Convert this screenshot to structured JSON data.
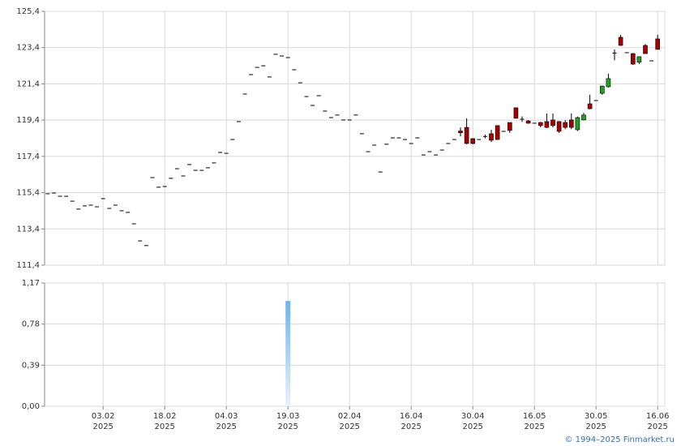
{
  "chart_data": {
    "type": "candlestick",
    "categories": [
      null,
      null,
      null,
      null,
      null,
      null,
      null,
      null,
      null,
      [
        "03.02",
        "2025"
      ],
      null,
      null,
      null,
      null,
      null,
      null,
      null,
      null,
      null,
      [
        "18.02",
        "2025"
      ],
      null,
      null,
      null,
      null,
      null,
      null,
      null,
      null,
      null,
      [
        "04.03",
        "2025"
      ],
      null,
      null,
      null,
      null,
      null,
      null,
      null,
      null,
      null,
      [
        "19.03",
        "2025"
      ],
      null,
      null,
      null,
      null,
      null,
      null,
      null,
      null,
      null,
      [
        "02.04",
        "2025"
      ],
      null,
      null,
      null,
      null,
      null,
      null,
      null,
      null,
      null,
      [
        "16.04",
        "2025"
      ],
      null,
      null,
      null,
      null,
      null,
      null,
      null,
      null,
      null,
      [
        "30.04",
        "2025"
      ],
      null,
      null,
      null,
      null,
      null,
      null,
      null,
      null,
      null,
      [
        "16.05",
        "2025"
      ],
      null,
      null,
      null,
      null,
      null,
      null,
      null,
      null,
      null,
      [
        "30.05",
        "2025"
      ],
      null,
      null,
      null,
      null,
      null,
      null,
      null,
      null,
      null,
      [
        "16.06",
        "2025"
      ]
    ],
    "open": [
      115.34,
      115.38,
      115.2,
      115.2,
      114.93,
      114.49,
      114.67,
      114.71,
      114.62,
      115.07,
      114.53,
      114.71,
      114.4,
      114.31,
      113.68,
      112.74,
      112.48,
      116.23,
      115.7,
      115.74,
      116.19,
      116.72,
      116.32,
      116.95,
      116.63,
      116.63,
      116.77,
      117.04,
      117.62,
      117.57,
      118.33,
      119.32,
      120.84,
      121.91,
      122.31,
      122.4,
      121.78,
      123.03,
      122.94,
      122.85,
      122.18,
      121.46,
      120.7,
      120.21,
      120.75,
      119.9,
      119.54,
      119.68,
      119.41,
      119.41,
      119.68,
      118.65,
      117.66,
      118.02,
      116.54,
      118.07,
      118.42,
      118.42,
      118.33,
      118.11,
      118.42,
      117.48,
      117.66,
      117.48,
      117.75,
      118.11,
      118.33,
      118.8,
      119.0,
      118.38,
      118.33,
      118.5,
      118.65,
      119.1,
      118.78,
      119.27,
      120.08,
      119.45,
      119.36,
      119.23,
      119.27,
      119.32,
      119.41,
      119.32,
      119.27,
      119.41,
      118.87,
      119.41,
      120.3,
      120.48,
      120.88,
      121.24,
      123.1,
      123.97,
      123.12,
      123.07,
      122.6,
      123.52,
      122.67,
      123.88
    ],
    "high": [
      115.34,
      115.38,
      115.2,
      115.2,
      114.93,
      114.49,
      114.67,
      114.71,
      114.62,
      115.07,
      114.53,
      114.71,
      114.4,
      114.31,
      113.68,
      112.74,
      112.48,
      116.23,
      115.7,
      115.74,
      116.19,
      116.72,
      116.32,
      116.95,
      116.63,
      116.63,
      116.77,
      117.04,
      117.62,
      117.57,
      118.33,
      119.32,
      120.84,
      121.91,
      122.31,
      122.4,
      121.78,
      123.03,
      122.94,
      122.85,
      122.18,
      121.46,
      120.7,
      120.21,
      120.75,
      119.9,
      119.54,
      119.68,
      119.41,
      119.41,
      119.68,
      118.65,
      117.66,
      118.02,
      116.54,
      118.07,
      118.42,
      118.42,
      118.33,
      118.11,
      118.42,
      117.48,
      117.66,
      117.48,
      117.75,
      118.11,
      118.33,
      119.0,
      119.5,
      118.4,
      118.33,
      118.6,
      118.87,
      119.1,
      118.78,
      119.27,
      120.1,
      119.6,
      119.4,
      119.23,
      119.3,
      119.77,
      119.77,
      119.35,
      119.4,
      119.77,
      119.6,
      119.8,
      120.8,
      120.48,
      121.3,
      121.96,
      123.3,
      124.1,
      123.12,
      123.1,
      122.9,
      123.6,
      122.67,
      124.1
    ],
    "low": [
      115.34,
      115.38,
      115.2,
      115.2,
      114.93,
      114.49,
      114.67,
      114.71,
      114.62,
      115.07,
      114.53,
      114.71,
      114.4,
      114.31,
      113.68,
      112.74,
      112.48,
      116.23,
      115.7,
      115.74,
      116.19,
      116.72,
      116.32,
      116.95,
      116.63,
      116.63,
      116.77,
      117.04,
      117.62,
      117.57,
      118.33,
      119.32,
      120.84,
      121.91,
      122.31,
      122.4,
      121.78,
      123.03,
      122.94,
      122.85,
      122.18,
      121.46,
      120.7,
      120.21,
      120.75,
      119.9,
      119.54,
      119.68,
      119.41,
      119.41,
      119.68,
      118.65,
      117.66,
      118.02,
      116.54,
      118.07,
      118.42,
      118.42,
      118.33,
      118.11,
      118.42,
      117.48,
      117.66,
      117.48,
      117.75,
      118.11,
      118.33,
      118.5,
      118.07,
      118.07,
      118.33,
      118.4,
      118.2,
      118.33,
      118.78,
      118.7,
      119.5,
      119.3,
      119.2,
      119.23,
      119.0,
      118.96,
      119.0,
      118.7,
      118.9,
      118.9,
      118.8,
      119.4,
      120.0,
      120.48,
      120.8,
      121.2,
      122.7,
      123.5,
      123.12,
      122.45,
      122.5,
      123.07,
      122.67,
      123.3
    ],
    "close": [
      115.34,
      115.38,
      115.2,
      115.2,
      114.93,
      114.49,
      114.67,
      114.71,
      114.62,
      115.07,
      114.53,
      114.71,
      114.4,
      114.31,
      113.68,
      112.74,
      112.48,
      116.23,
      115.7,
      115.74,
      116.19,
      116.72,
      116.32,
      116.95,
      116.63,
      116.63,
      116.77,
      117.04,
      117.62,
      117.57,
      118.33,
      119.32,
      120.84,
      121.91,
      122.31,
      122.4,
      121.78,
      123.03,
      122.94,
      122.85,
      122.18,
      121.46,
      120.7,
      120.21,
      120.75,
      119.9,
      119.54,
      119.68,
      119.41,
      119.41,
      119.68,
      118.65,
      117.66,
      118.02,
      116.54,
      118.07,
      118.42,
      118.42,
      118.33,
      118.11,
      118.42,
      117.48,
      117.66,
      117.48,
      117.75,
      118.11,
      118.33,
      118.7,
      118.11,
      118.11,
      118.33,
      118.5,
      118.29,
      118.33,
      118.78,
      118.83,
      119.5,
      119.45,
      119.23,
      119.23,
      119.1,
      119.0,
      119.1,
      118.78,
      119.0,
      119.0,
      119.54,
      119.68,
      120.03,
      120.48,
      121.28,
      121.69,
      123.1,
      123.52,
      123.12,
      122.49,
      122.9,
      123.07,
      122.67,
      123.3
    ],
    "up_color": "#22a022",
    "down_color": "#a80000",
    "flat_color": "#000000",
    "ylim": [
      111.4,
      125.4
    ],
    "yticks": [
      {
        "value": 111.4,
        "label": "111,4"
      },
      {
        "value": 113.4,
        "label": "113,4"
      },
      {
        "value": 115.4,
        "label": "115,4"
      },
      {
        "value": 117.4,
        "label": "117,4"
      },
      {
        "value": 119.4,
        "label": "119,4"
      },
      {
        "value": 121.4,
        "label": "121,4"
      },
      {
        "value": 123.4,
        "label": "123,4"
      },
      {
        "value": 125.4,
        "label": "125,4"
      }
    ],
    "grid": true,
    "volume": {
      "color": "#6fb3e8",
      "values": [
        0,
        0,
        0,
        0,
        0,
        0,
        0,
        0,
        0,
        0,
        0,
        0,
        0,
        0,
        0,
        0,
        0,
        0,
        0,
        0,
        0,
        0,
        0,
        0,
        0,
        0,
        0,
        0,
        0,
        0,
        0,
        0,
        0,
        0,
        0,
        0,
        0,
        0,
        0,
        1.0,
        0,
        0,
        0,
        0,
        0,
        0,
        0,
        0,
        0,
        0,
        0,
        0,
        0,
        0,
        0,
        0,
        0,
        0,
        0,
        0,
        0,
        0,
        0,
        0,
        0,
        0,
        0,
        0,
        0,
        0,
        0,
        0,
        0,
        0,
        0,
        0,
        0,
        0,
        0,
        0,
        0,
        0,
        0,
        0,
        0,
        0,
        0,
        0,
        0,
        0,
        0,
        0,
        0,
        0,
        0,
        0,
        0,
        0,
        0,
        0
      ],
      "ylim": [
        0,
        1.17
      ],
      "yticks": [
        {
          "value": 0,
          "label": "0,00"
        },
        {
          "value": 0.39,
          "label": "0,39"
        },
        {
          "value": 0.78,
          "label": "0,78"
        },
        {
          "value": 1.17,
          "label": "1,17"
        }
      ]
    }
  },
  "copyright": "© 1994–2025 Finmarket.ru"
}
